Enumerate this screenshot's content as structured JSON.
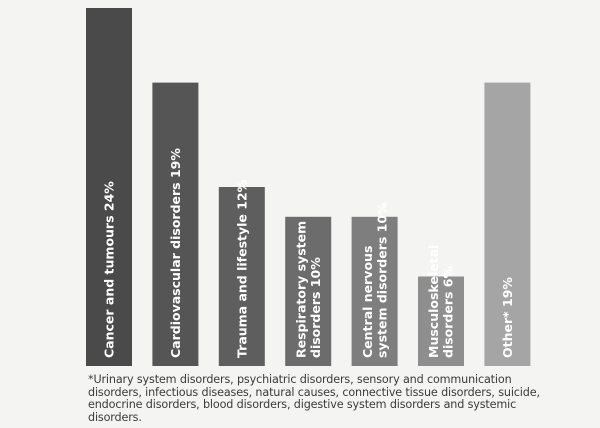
{
  "chart_data": {
    "type": "bar",
    "orientation": "vertical",
    "categories": [
      "Cancer and tumours 24%",
      "Cardiovascular disorders 19%",
      "Trauma and lifestyle 12%",
      "Respiratory system disorders 10%",
      "Central nervous system disorders 10%",
      "Musculoskeletal disorders 6%",
      "Other* 19%"
    ],
    "label_lines": [
      [
        "Cancer and tumours 24%"
      ],
      [
        "Cardiovascular disorders 19%"
      ],
      [
        "Trauma and lifestyle 12%"
      ],
      [
        "Respiratory system",
        "disorders 10%"
      ],
      [
        "Central nervous",
        "system disorders 10%"
      ],
      [
        "Musculoskeletal",
        "disorders 6%"
      ],
      [
        "Other* 19%"
      ]
    ],
    "values": [
      24,
      19,
      12,
      10,
      10,
      6,
      19
    ],
    "colors": [
      "#4a4a4a",
      "#555555",
      "#5e5e5e",
      "#6c6c6c",
      "#7e7e7e",
      "#8e8e8e",
      "#a5a5a5"
    ],
    "ylim": [
      0,
      24
    ],
    "grid": false,
    "legend": "none",
    "title": "",
    "xlabel": "",
    "ylabel": ""
  },
  "footnote": "*Urinary system disorders, psychiatric disorders, sensory and communication disorders, infectious diseases, natural causes, connective tissue disorders, suicide, endocrine disorders, blood disorders, digestive system disorders and systemic disorders."
}
